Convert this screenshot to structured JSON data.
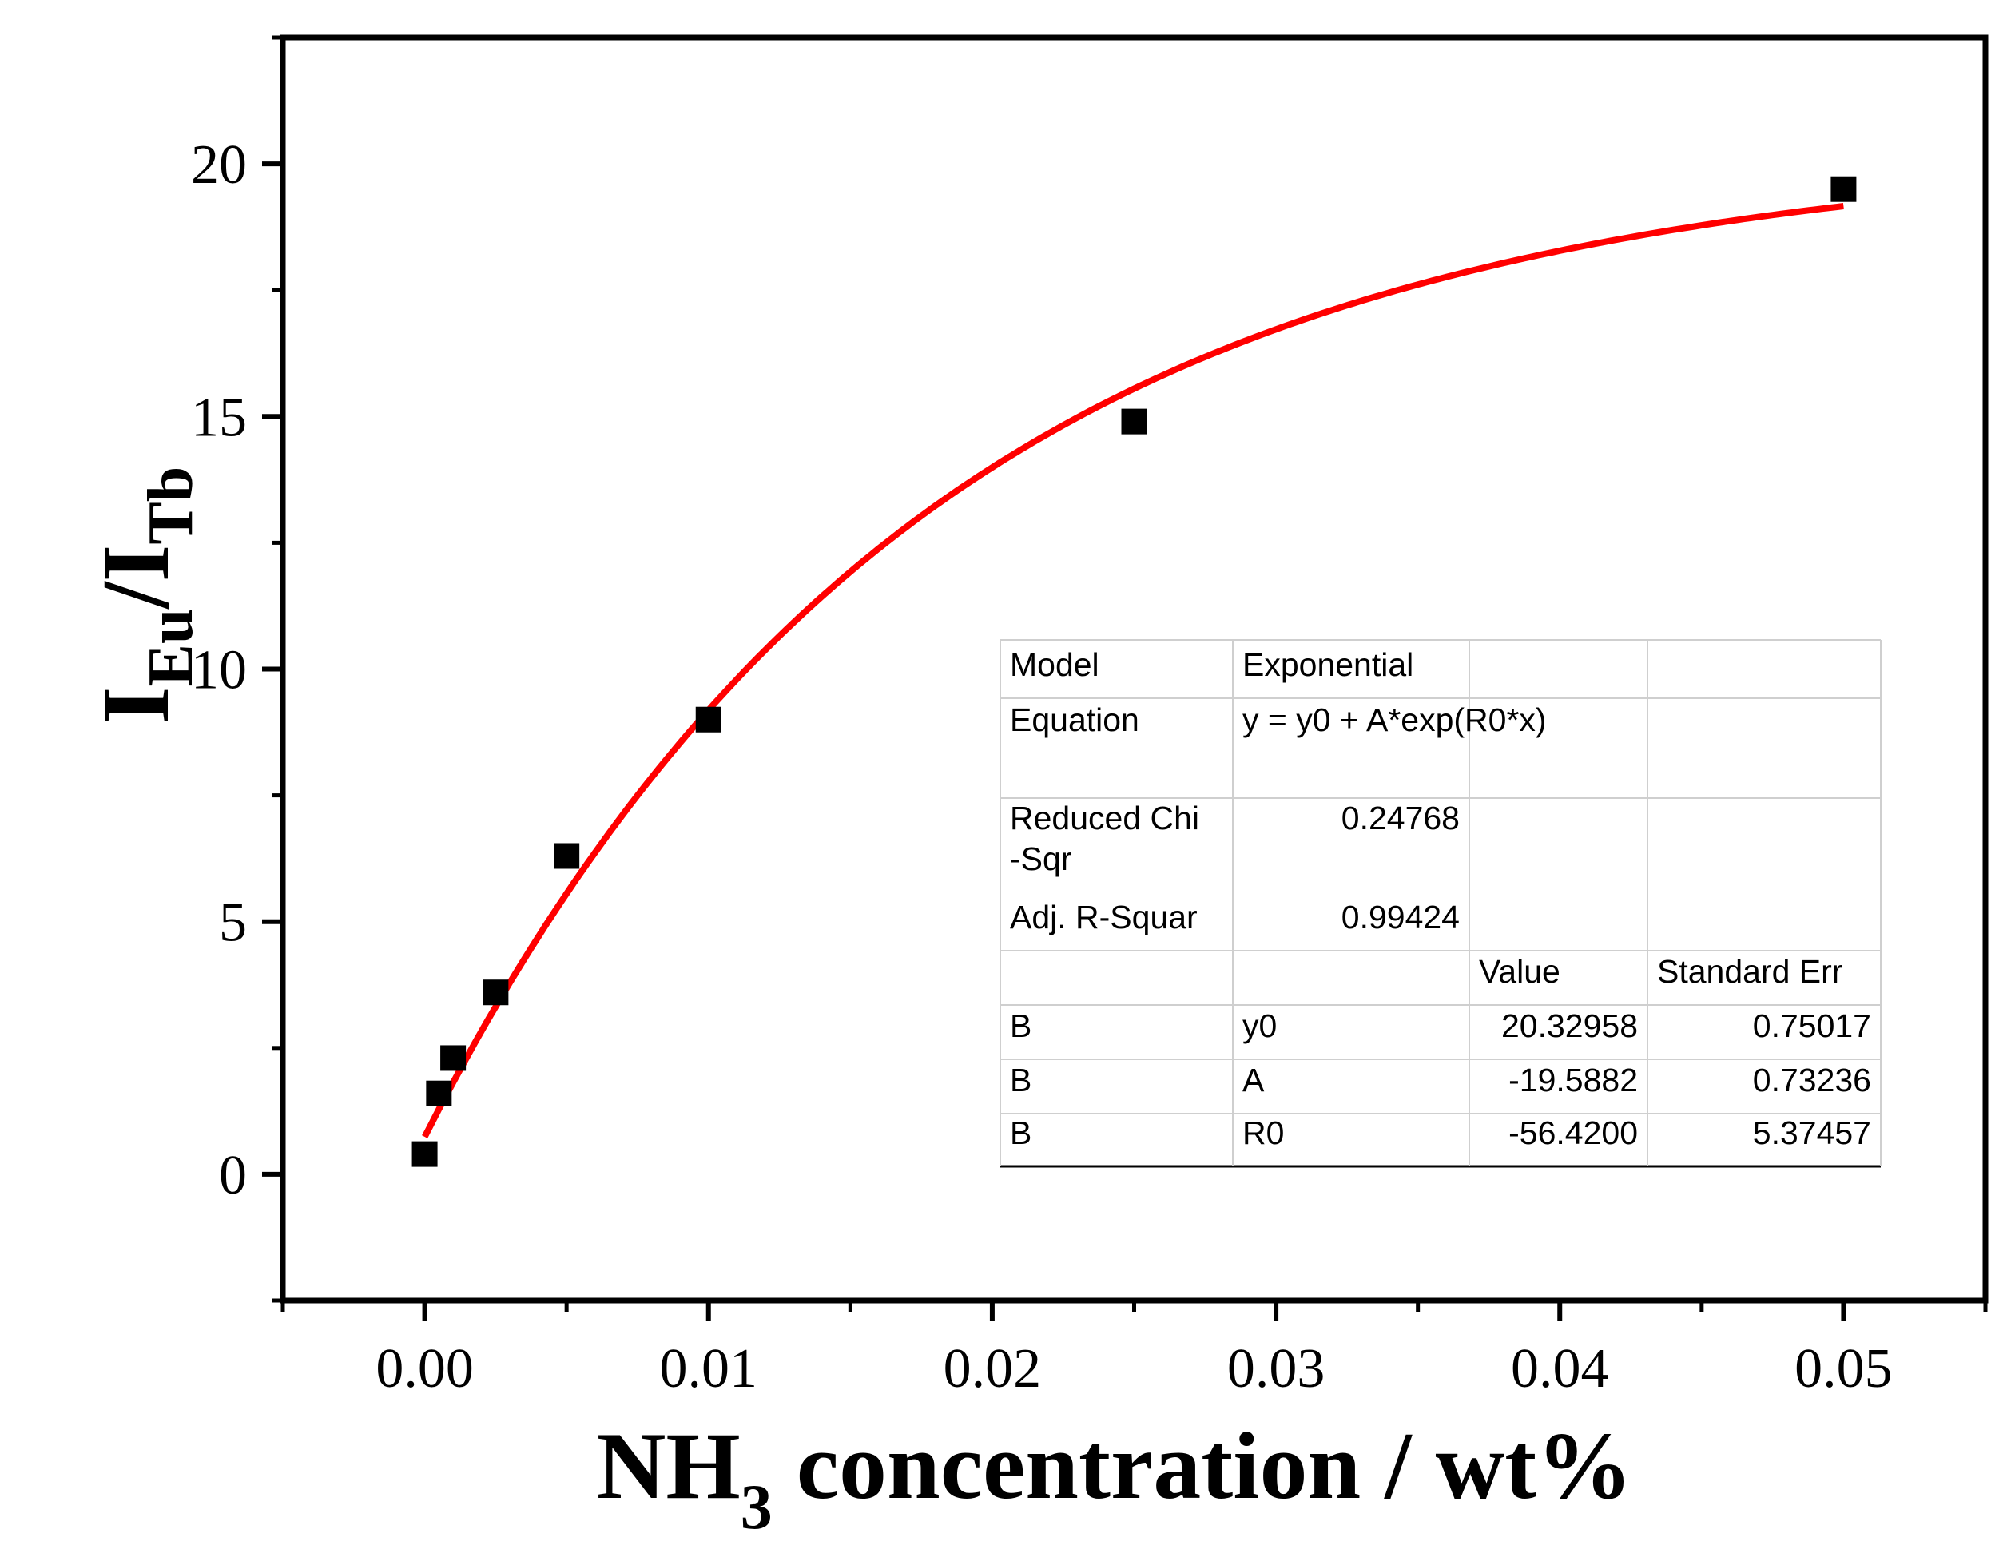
{
  "chart_data": {
    "type": "scatter",
    "title": "",
    "xlabel": {
      "main": "NH",
      "sub": "3",
      "rest": " concentration / wt%"
    },
    "ylabel": {
      "first": "I",
      "first_sub": "Eu",
      "slash": "/I",
      "second_sub": "Tb"
    },
    "xlim": [
      -0.005,
      0.055
    ],
    "ylim": [
      -2.5,
      22.5
    ],
    "xticks": [
      0.0,
      0.01,
      0.02,
      0.03,
      0.04,
      0.05
    ],
    "xtick_labels": [
      "0.00",
      "0.01",
      "0.02",
      "0.03",
      "0.04",
      "0.05"
    ],
    "yticks": [
      0,
      5,
      10,
      15,
      20
    ],
    "ytick_labels": [
      "0",
      "5",
      "10",
      "15",
      "20"
    ],
    "series": [
      {
        "name": "B",
        "marker": "square",
        "color": "#000000",
        "x": [
          0.0,
          0.0005,
          0.001,
          0.0025,
          0.005,
          0.01,
          0.025,
          0.05
        ],
        "y": [
          0.4,
          1.6,
          2.3,
          3.6,
          6.3,
          9.0,
          14.9,
          19.5
        ]
      }
    ],
    "fit": {
      "name": "Exponential fit",
      "color": "#ff0000",
      "y0": 20.32958,
      "A": -19.5882,
      "R0": -56.42,
      "x_range": [
        0.0,
        0.05
      ]
    },
    "fit_table": {
      "rows": [
        [
          "Model",
          "Exponential",
          "",
          ""
        ],
        [
          "Equation",
          "y = y0 + A*exp(R0*x)",
          "",
          ""
        ],
        [
          "Reduced Chi",
          "0.24768",
          "",
          ""
        ],
        [
          "-Sqr",
          "",
          "",
          ""
        ],
        [
          "Adj. R-Squar",
          "0.99424",
          "",
          ""
        ],
        [
          "",
          "",
          "Value",
          "Standard Err"
        ],
        [
          "B",
          "y0",
          "20.32958",
          "0.75017"
        ],
        [
          "B",
          "A",
          "-19.5882",
          "0.73236"
        ],
        [
          "B",
          "R0",
          "-56.4200",
          "5.37457"
        ]
      ]
    }
  }
}
